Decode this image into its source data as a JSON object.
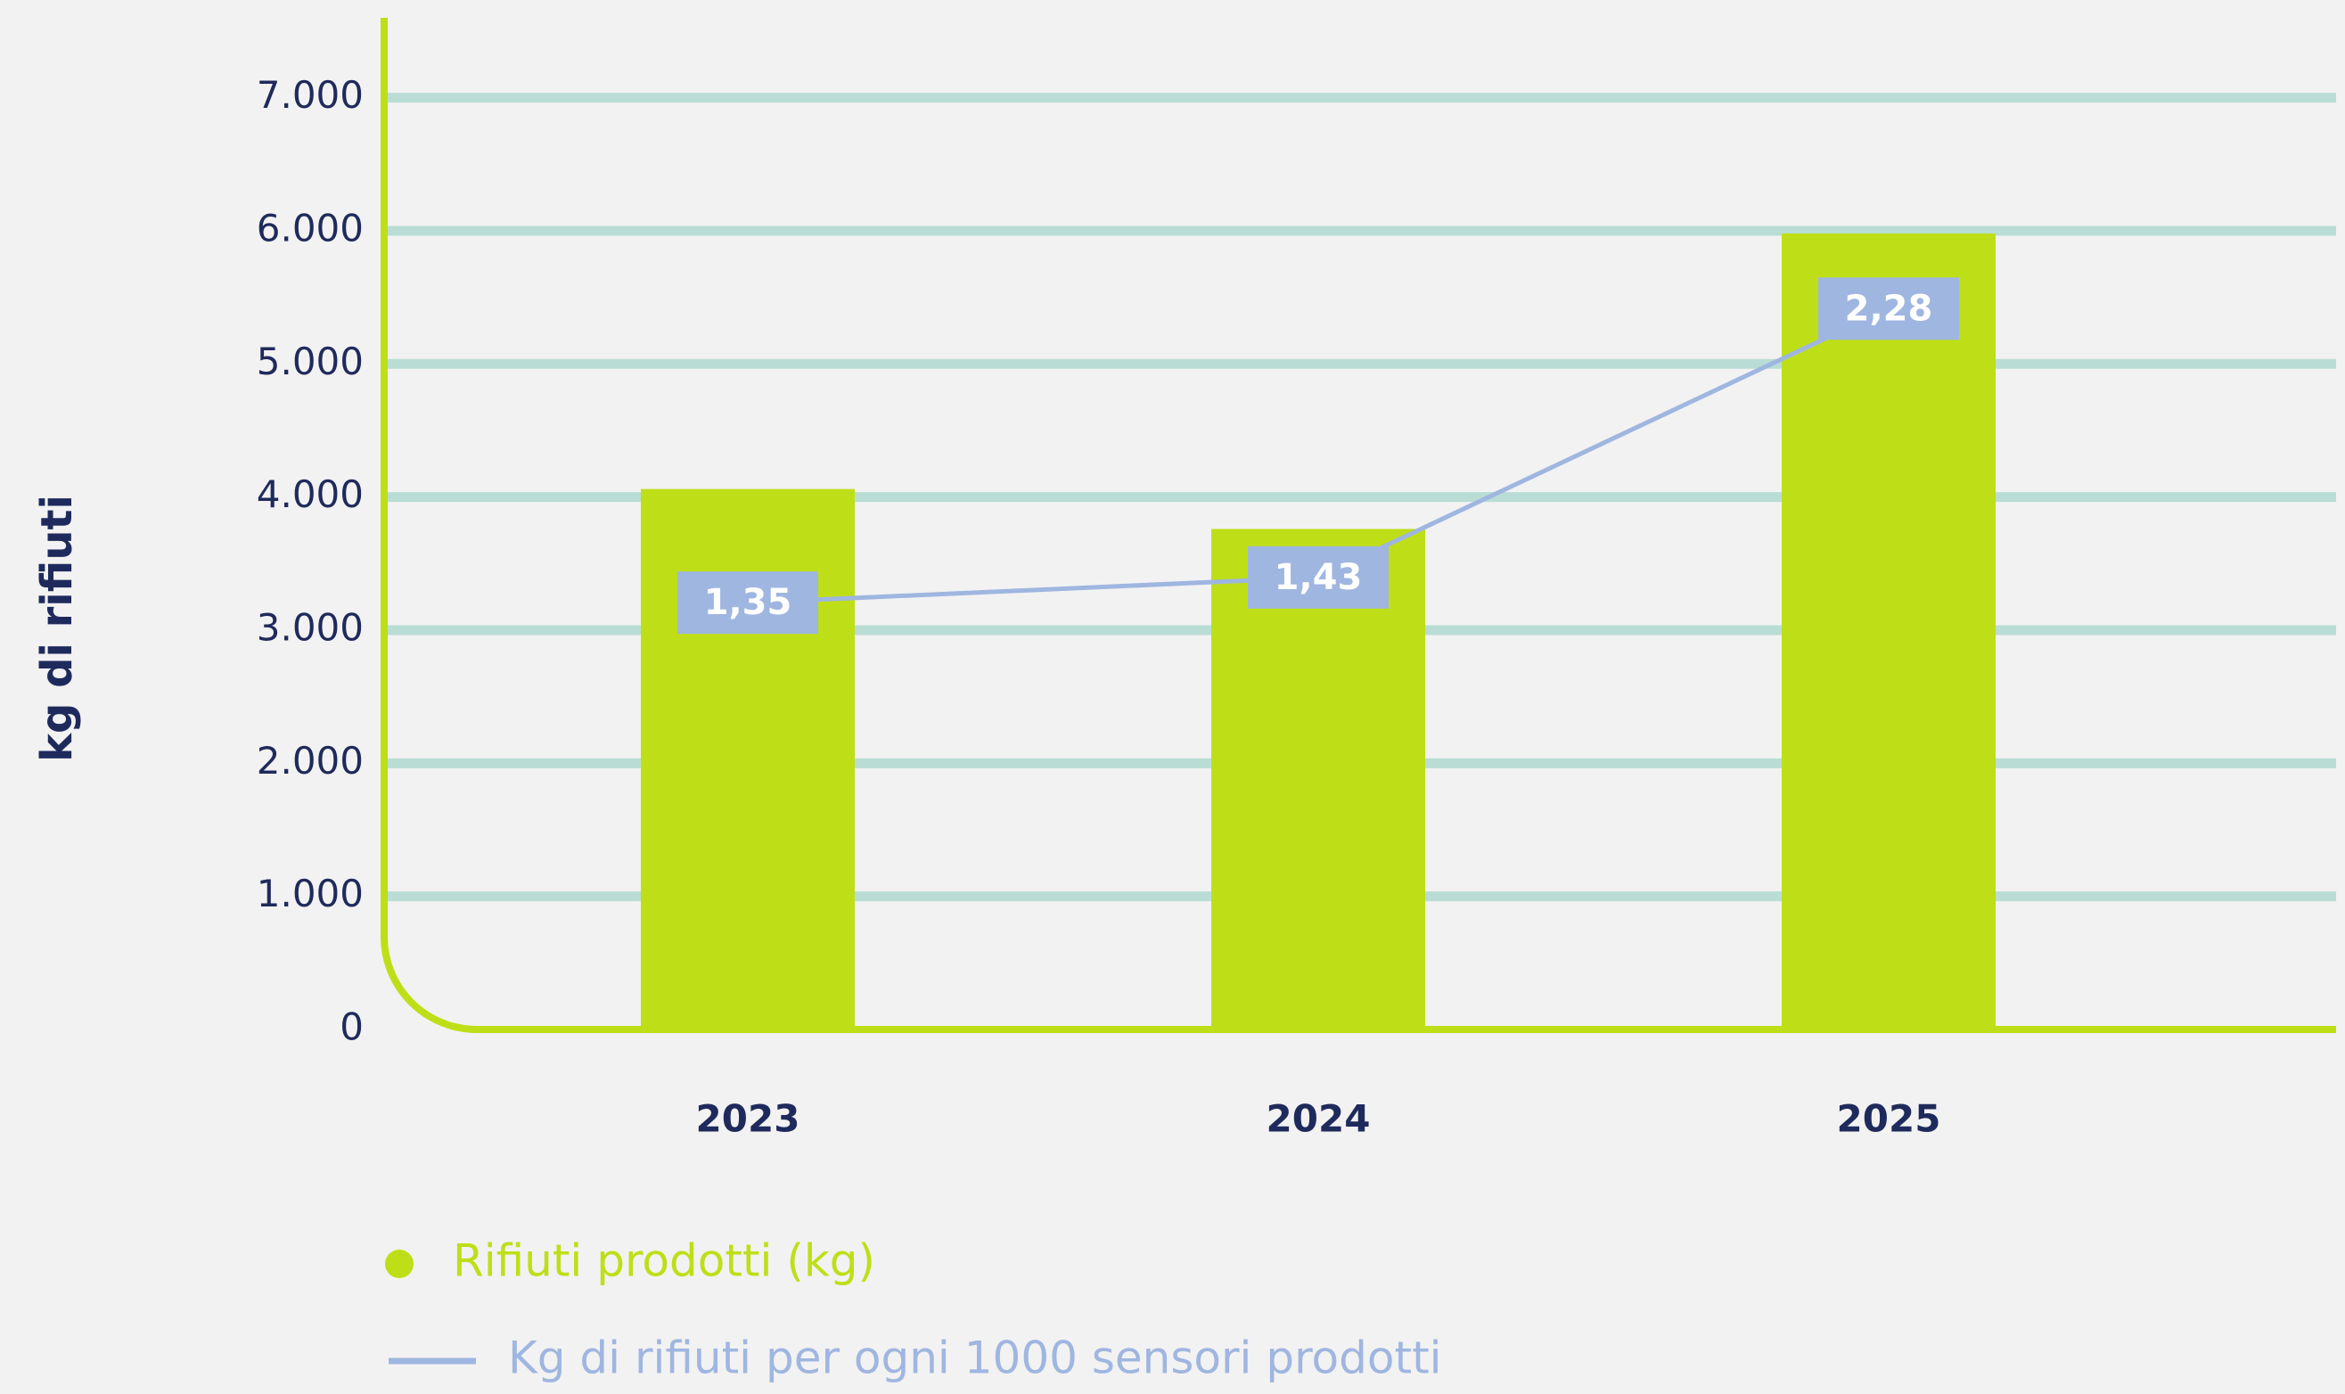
{
  "chart_data": {
    "type": "bar",
    "y_label": "kg di rifiuti",
    "categories": [
      "2023",
      "2024",
      "2025"
    ],
    "series": [
      {
        "name": "Rifiuti prodotti (kg)",
        "type": "bar",
        "color": "#bedf17",
        "values": [
          4060,
          3760,
          5980
        ]
      },
      {
        "name": "Kg di rifiuti per ogni 1000 sensori prodotti",
        "type": "line",
        "axis": "y2",
        "color": "#9fb6e0",
        "values": [
          1.35,
          1.43,
          2.28
        ],
        "value_labels": [
          "1,35",
          "1,43",
          "2,28"
        ]
      }
    ],
    "ylim": [
      0,
      7600
    ],
    "yticks": [
      0,
      {
        "value": 1000,
        "label": "1.000"
      },
      {
        "value": 2000,
        "label": "2.000"
      },
      {
        "value": 3000,
        "label": "3.000"
      },
      {
        "value": 4000,
        "label": "4.000"
      },
      {
        "value": 5000,
        "label": "5.000"
      },
      {
        "value": 6000,
        "label": "6.000"
      },
      {
        "value": 7000,
        "label": "7.000"
      }
    ],
    "y2lim": [
      0,
      3.2
    ],
    "grid": true,
    "legend": "bottom"
  }
}
